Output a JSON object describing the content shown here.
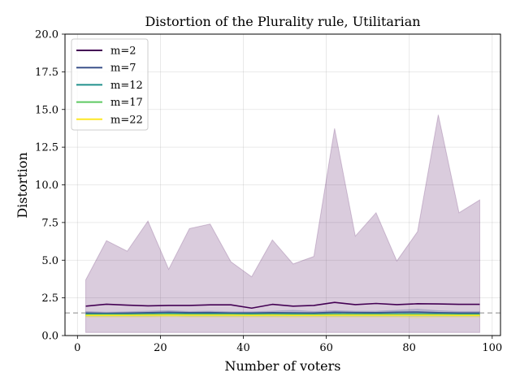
{
  "chart_data": {
    "type": "line",
    "title": "Distortion of the Plurality rule, Utilitarian",
    "xlabel": "Number of voters",
    "ylabel": "Distortion",
    "xlim": [
      -3,
      102
    ],
    "ylim": [
      0,
      20
    ],
    "xticks": [
      0,
      20,
      40,
      60,
      80,
      100
    ],
    "yticks": [
      0.0,
      2.5,
      5.0,
      7.5,
      10.0,
      12.5,
      15.0,
      17.5,
      20.0
    ],
    "ytick_labels": [
      "0.0",
      "2.5",
      "5.0",
      "7.5",
      "10.0",
      "12.5",
      "15.0",
      "17.5",
      "20.0"
    ],
    "grid": true,
    "legend_position": "upper-left",
    "reference_line": {
      "y": 1.5,
      "style": "dashed",
      "color": "#aaaaaa"
    },
    "x": [
      2,
      7,
      12,
      17,
      22,
      27,
      32,
      37,
      42,
      47,
      52,
      57,
      62,
      67,
      72,
      77,
      82,
      87,
      92,
      97
    ],
    "series": [
      {
        "name": "m=2",
        "color": "#440154",
        "values": [
          1.95,
          2.08,
          2.02,
          1.97,
          2.0,
          2.0,
          2.04,
          2.04,
          1.82,
          2.07,
          1.95,
          2.0,
          2.2,
          2.05,
          2.13,
          2.05,
          2.11,
          2.1,
          2.07,
          2.07
        ],
        "upper": [
          3.7,
          6.3,
          5.6,
          7.6,
          4.4,
          7.1,
          7.4,
          4.9,
          3.9,
          6.35,
          4.75,
          5.25,
          13.75,
          6.6,
          8.15,
          4.95,
          6.9,
          14.65,
          8.15,
          9.0
        ],
        "lower": [
          0.2,
          0.2,
          0.2,
          0.2,
          0.2,
          0.2,
          0.2,
          0.2,
          0.2,
          0.2,
          0.2,
          0.2,
          0.2,
          0.2,
          0.2,
          0.2,
          0.2,
          0.2,
          0.2,
          0.2
        ]
      },
      {
        "name": "m=7",
        "color": "#3b528b",
        "values": [
          1.5,
          1.47,
          1.49,
          1.52,
          1.55,
          1.52,
          1.53,
          1.5,
          1.5,
          1.52,
          1.51,
          1.5,
          1.55,
          1.53,
          1.52,
          1.55,
          1.56,
          1.52,
          1.5,
          1.5
        ],
        "upper": [
          1.6,
          1.55,
          1.58,
          1.62,
          1.66,
          1.6,
          1.62,
          1.58,
          1.58,
          1.62,
          1.68,
          1.6,
          1.65,
          1.62,
          1.62,
          1.68,
          1.75,
          1.65,
          1.6,
          1.6
        ],
        "lower": [
          1.35,
          1.35,
          1.35,
          1.35,
          1.38,
          1.35,
          1.35,
          1.35,
          1.35,
          1.35,
          1.35,
          1.35,
          1.38,
          1.35,
          1.35,
          1.35,
          1.35,
          1.35,
          1.35,
          1.35
        ]
      },
      {
        "name": "m=12",
        "color": "#21918c",
        "values": [
          1.42,
          1.42,
          1.42,
          1.43,
          1.45,
          1.44,
          1.44,
          1.43,
          1.43,
          1.43,
          1.43,
          1.42,
          1.44,
          1.43,
          1.43,
          1.44,
          1.44,
          1.43,
          1.42,
          1.42
        ],
        "upper": [
          1.5,
          1.5,
          1.5,
          1.52,
          1.55,
          1.52,
          1.52,
          1.5,
          1.5,
          1.5,
          1.52,
          1.5,
          1.52,
          1.5,
          1.52,
          1.52,
          1.55,
          1.52,
          1.5,
          1.5
        ],
        "lower": [
          1.3,
          1.3,
          1.3,
          1.3,
          1.32,
          1.3,
          1.3,
          1.3,
          1.3,
          1.3,
          1.3,
          1.3,
          1.3,
          1.3,
          1.3,
          1.3,
          1.3,
          1.3,
          1.3,
          1.3
        ]
      },
      {
        "name": "m=17",
        "color": "#5ec962",
        "values": [
          1.38,
          1.38,
          1.38,
          1.39,
          1.4,
          1.39,
          1.39,
          1.39,
          1.38,
          1.39,
          1.38,
          1.38,
          1.39,
          1.39,
          1.39,
          1.39,
          1.39,
          1.39,
          1.38,
          1.38
        ],
        "upper": [
          1.45,
          1.45,
          1.45,
          1.46,
          1.48,
          1.46,
          1.46,
          1.45,
          1.45,
          1.46,
          1.45,
          1.45,
          1.46,
          1.46,
          1.46,
          1.46,
          1.46,
          1.46,
          1.45,
          1.45
        ],
        "lower": [
          1.28,
          1.28,
          1.28,
          1.28,
          1.3,
          1.28,
          1.28,
          1.28,
          1.28,
          1.28,
          1.28,
          1.28,
          1.28,
          1.28,
          1.28,
          1.28,
          1.28,
          1.28,
          1.28,
          1.28
        ]
      },
      {
        "name": "m=22",
        "color": "#fde725",
        "values": [
          1.34,
          1.34,
          1.34,
          1.35,
          1.36,
          1.35,
          1.35,
          1.35,
          1.34,
          1.35,
          1.34,
          1.34,
          1.35,
          1.35,
          1.35,
          1.35,
          1.35,
          1.35,
          1.34,
          1.34
        ],
        "upper": [
          1.4,
          1.4,
          1.4,
          1.41,
          1.42,
          1.41,
          1.41,
          1.41,
          1.4,
          1.41,
          1.4,
          1.4,
          1.41,
          1.41,
          1.41,
          1.41,
          1.41,
          1.41,
          1.4,
          1.4
        ],
        "lower": [
          1.22,
          1.22,
          1.22,
          1.22,
          1.24,
          1.22,
          1.22,
          1.22,
          1.22,
          1.22,
          1.2,
          1.22,
          1.22,
          1.22,
          1.22,
          1.22,
          1.18,
          1.22,
          1.22,
          1.22
        ]
      }
    ]
  }
}
